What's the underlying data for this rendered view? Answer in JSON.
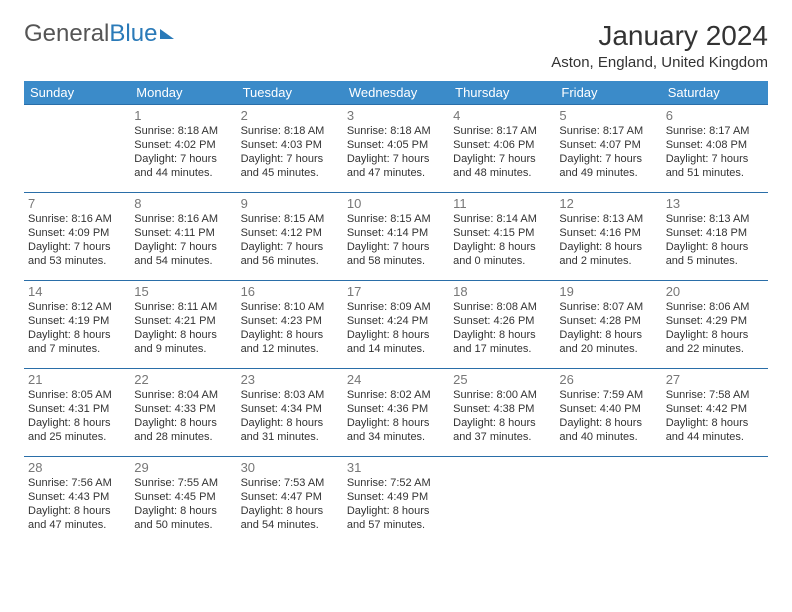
{
  "logo": {
    "part1": "General",
    "part2": "Blue"
  },
  "title": "January 2024",
  "subtitle": "Aston, England, United Kingdom",
  "colors": {
    "header_bg": "#3b8bc9",
    "header_text": "#ffffff",
    "row_border": "#2a6ea8",
    "daynum": "#777777",
    "body_text": "#333333",
    "logo_gray": "#555555",
    "logo_blue": "#2a7ab8",
    "background": "#ffffff"
  },
  "day_headers": [
    "Sunday",
    "Monday",
    "Tuesday",
    "Wednesday",
    "Thursday",
    "Friday",
    "Saturday"
  ],
  "weeks": [
    [
      null,
      {
        "n": "1",
        "sr": "Sunrise: 8:18 AM",
        "ss": "Sunset: 4:02 PM",
        "d1": "Daylight: 7 hours",
        "d2": "and 44 minutes."
      },
      {
        "n": "2",
        "sr": "Sunrise: 8:18 AM",
        "ss": "Sunset: 4:03 PM",
        "d1": "Daylight: 7 hours",
        "d2": "and 45 minutes."
      },
      {
        "n": "3",
        "sr": "Sunrise: 8:18 AM",
        "ss": "Sunset: 4:05 PM",
        "d1": "Daylight: 7 hours",
        "d2": "and 47 minutes."
      },
      {
        "n": "4",
        "sr": "Sunrise: 8:17 AM",
        "ss": "Sunset: 4:06 PM",
        "d1": "Daylight: 7 hours",
        "d2": "and 48 minutes."
      },
      {
        "n": "5",
        "sr": "Sunrise: 8:17 AM",
        "ss": "Sunset: 4:07 PM",
        "d1": "Daylight: 7 hours",
        "d2": "and 49 minutes."
      },
      {
        "n": "6",
        "sr": "Sunrise: 8:17 AM",
        "ss": "Sunset: 4:08 PM",
        "d1": "Daylight: 7 hours",
        "d2": "and 51 minutes."
      }
    ],
    [
      {
        "n": "7",
        "sr": "Sunrise: 8:16 AM",
        "ss": "Sunset: 4:09 PM",
        "d1": "Daylight: 7 hours",
        "d2": "and 53 minutes."
      },
      {
        "n": "8",
        "sr": "Sunrise: 8:16 AM",
        "ss": "Sunset: 4:11 PM",
        "d1": "Daylight: 7 hours",
        "d2": "and 54 minutes."
      },
      {
        "n": "9",
        "sr": "Sunrise: 8:15 AM",
        "ss": "Sunset: 4:12 PM",
        "d1": "Daylight: 7 hours",
        "d2": "and 56 minutes."
      },
      {
        "n": "10",
        "sr": "Sunrise: 8:15 AM",
        "ss": "Sunset: 4:14 PM",
        "d1": "Daylight: 7 hours",
        "d2": "and 58 minutes."
      },
      {
        "n": "11",
        "sr": "Sunrise: 8:14 AM",
        "ss": "Sunset: 4:15 PM",
        "d1": "Daylight: 8 hours",
        "d2": "and 0 minutes."
      },
      {
        "n": "12",
        "sr": "Sunrise: 8:13 AM",
        "ss": "Sunset: 4:16 PM",
        "d1": "Daylight: 8 hours",
        "d2": "and 2 minutes."
      },
      {
        "n": "13",
        "sr": "Sunrise: 8:13 AM",
        "ss": "Sunset: 4:18 PM",
        "d1": "Daylight: 8 hours",
        "d2": "and 5 minutes."
      }
    ],
    [
      {
        "n": "14",
        "sr": "Sunrise: 8:12 AM",
        "ss": "Sunset: 4:19 PM",
        "d1": "Daylight: 8 hours",
        "d2": "and 7 minutes."
      },
      {
        "n": "15",
        "sr": "Sunrise: 8:11 AM",
        "ss": "Sunset: 4:21 PM",
        "d1": "Daylight: 8 hours",
        "d2": "and 9 minutes."
      },
      {
        "n": "16",
        "sr": "Sunrise: 8:10 AM",
        "ss": "Sunset: 4:23 PM",
        "d1": "Daylight: 8 hours",
        "d2": "and 12 minutes."
      },
      {
        "n": "17",
        "sr": "Sunrise: 8:09 AM",
        "ss": "Sunset: 4:24 PM",
        "d1": "Daylight: 8 hours",
        "d2": "and 14 minutes."
      },
      {
        "n": "18",
        "sr": "Sunrise: 8:08 AM",
        "ss": "Sunset: 4:26 PM",
        "d1": "Daylight: 8 hours",
        "d2": "and 17 minutes."
      },
      {
        "n": "19",
        "sr": "Sunrise: 8:07 AM",
        "ss": "Sunset: 4:28 PM",
        "d1": "Daylight: 8 hours",
        "d2": "and 20 minutes."
      },
      {
        "n": "20",
        "sr": "Sunrise: 8:06 AM",
        "ss": "Sunset: 4:29 PM",
        "d1": "Daylight: 8 hours",
        "d2": "and 22 minutes."
      }
    ],
    [
      {
        "n": "21",
        "sr": "Sunrise: 8:05 AM",
        "ss": "Sunset: 4:31 PM",
        "d1": "Daylight: 8 hours",
        "d2": "and 25 minutes."
      },
      {
        "n": "22",
        "sr": "Sunrise: 8:04 AM",
        "ss": "Sunset: 4:33 PM",
        "d1": "Daylight: 8 hours",
        "d2": "and 28 minutes."
      },
      {
        "n": "23",
        "sr": "Sunrise: 8:03 AM",
        "ss": "Sunset: 4:34 PM",
        "d1": "Daylight: 8 hours",
        "d2": "and 31 minutes."
      },
      {
        "n": "24",
        "sr": "Sunrise: 8:02 AM",
        "ss": "Sunset: 4:36 PM",
        "d1": "Daylight: 8 hours",
        "d2": "and 34 minutes."
      },
      {
        "n": "25",
        "sr": "Sunrise: 8:00 AM",
        "ss": "Sunset: 4:38 PM",
        "d1": "Daylight: 8 hours",
        "d2": "and 37 minutes."
      },
      {
        "n": "26",
        "sr": "Sunrise: 7:59 AM",
        "ss": "Sunset: 4:40 PM",
        "d1": "Daylight: 8 hours",
        "d2": "and 40 minutes."
      },
      {
        "n": "27",
        "sr": "Sunrise: 7:58 AM",
        "ss": "Sunset: 4:42 PM",
        "d1": "Daylight: 8 hours",
        "d2": "and 44 minutes."
      }
    ],
    [
      {
        "n": "28",
        "sr": "Sunrise: 7:56 AM",
        "ss": "Sunset: 4:43 PM",
        "d1": "Daylight: 8 hours",
        "d2": "and 47 minutes."
      },
      {
        "n": "29",
        "sr": "Sunrise: 7:55 AM",
        "ss": "Sunset: 4:45 PM",
        "d1": "Daylight: 8 hours",
        "d2": "and 50 minutes."
      },
      {
        "n": "30",
        "sr": "Sunrise: 7:53 AM",
        "ss": "Sunset: 4:47 PM",
        "d1": "Daylight: 8 hours",
        "d2": "and 54 minutes."
      },
      {
        "n": "31",
        "sr": "Sunrise: 7:52 AM",
        "ss": "Sunset: 4:49 PM",
        "d1": "Daylight: 8 hours",
        "d2": "and 57 minutes."
      },
      null,
      null,
      null
    ]
  ]
}
